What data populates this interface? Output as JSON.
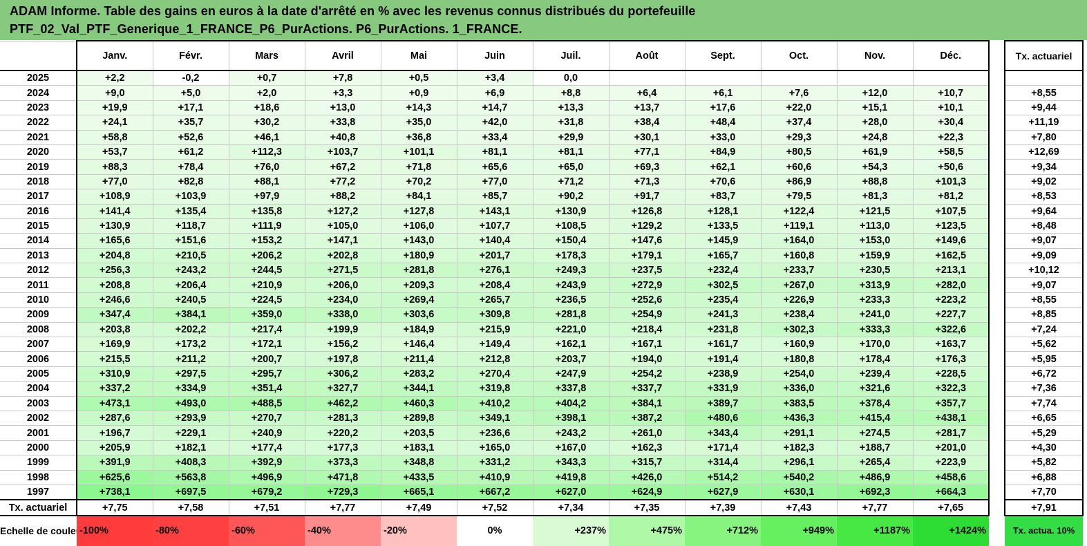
{
  "title": {
    "line1": "ADAM Informe. Table des gains en euros à la date d'arrêté en % avec les revenus connus distribués du portefeuille",
    "line2": "PTF_02_Val_PTF_Generique_1_FRANCE_P6_PurActions. P6_PurActions. 1_FRANCE."
  },
  "months": [
    "Janv.",
    "Févr.",
    "Mars",
    "Avril",
    "Mai",
    "Juin",
    "Juil.",
    "Août",
    "Sept.",
    "Oct.",
    "Nov.",
    "Déc."
  ],
  "side_header": "Tx. actuariel",
  "rows": [
    {
      "year": "2025",
      "values": [
        "+2,2",
        "-0,2",
        "+0,7",
        "+7,8",
        "+0,5",
        "+3,4",
        "0,0",
        "",
        "",
        "",
        "",
        ""
      ],
      "tx": ""
    },
    {
      "year": "2024",
      "values": [
        "+9,0",
        "+5,0",
        "+2,0",
        "+3,3",
        "+0,9",
        "+6,9",
        "+8,8",
        "+6,4",
        "+6,1",
        "+7,6",
        "+12,0",
        "+10,7"
      ],
      "tx": "+8,55"
    },
    {
      "year": "2023",
      "values": [
        "+19,9",
        "+17,1",
        "+18,6",
        "+13,0",
        "+14,3",
        "+14,7",
        "+13,3",
        "+13,7",
        "+17,6",
        "+22,0",
        "+15,1",
        "+10,1"
      ],
      "tx": "+9,44"
    },
    {
      "year": "2022",
      "values": [
        "+24,1",
        "+35,7",
        "+30,2",
        "+33,8",
        "+35,0",
        "+42,0",
        "+31,8",
        "+38,4",
        "+48,4",
        "+37,4",
        "+28,0",
        "+30,4"
      ],
      "tx": "+11,19"
    },
    {
      "year": "2021",
      "values": [
        "+58,8",
        "+52,6",
        "+46,1",
        "+40,8",
        "+36,8",
        "+33,4",
        "+29,9",
        "+30,1",
        "+33,0",
        "+29,3",
        "+24,8",
        "+22,3"
      ],
      "tx": "+7,80"
    },
    {
      "year": "2020",
      "values": [
        "+53,7",
        "+61,2",
        "+112,3",
        "+103,7",
        "+101,1",
        "+81,1",
        "+81,1",
        "+77,1",
        "+84,9",
        "+80,5",
        "+61,9",
        "+58,5"
      ],
      "tx": "+12,69"
    },
    {
      "year": "2019",
      "values": [
        "+88,3",
        "+78,4",
        "+76,0",
        "+67,2",
        "+71,8",
        "+65,6",
        "+65,0",
        "+69,3",
        "+62,1",
        "+60,6",
        "+54,3",
        "+50,6"
      ],
      "tx": "+9,34"
    },
    {
      "year": "2018",
      "values": [
        "+77,0",
        "+82,8",
        "+88,1",
        "+77,2",
        "+70,2",
        "+77,0",
        "+71,2",
        "+71,3",
        "+70,6",
        "+86,9",
        "+88,8",
        "+101,3"
      ],
      "tx": "+9,02"
    },
    {
      "year": "2017",
      "values": [
        "+108,9",
        "+103,9",
        "+97,9",
        "+88,2",
        "+84,1",
        "+85,7",
        "+90,2",
        "+91,7",
        "+83,7",
        "+79,5",
        "+81,3",
        "+81,2"
      ],
      "tx": "+8,53"
    },
    {
      "year": "2016",
      "values": [
        "+141,4",
        "+135,4",
        "+135,8",
        "+127,2",
        "+127,8",
        "+143,1",
        "+130,9",
        "+126,8",
        "+128,1",
        "+122,4",
        "+121,5",
        "+107,5"
      ],
      "tx": "+9,64"
    },
    {
      "year": "2015",
      "values": [
        "+130,9",
        "+118,7",
        "+111,9",
        "+105,0",
        "+106,0",
        "+107,7",
        "+108,5",
        "+129,2",
        "+133,5",
        "+119,1",
        "+113,0",
        "+123,5"
      ],
      "tx": "+8,48"
    },
    {
      "year": "2014",
      "values": [
        "+165,6",
        "+151,6",
        "+153,2",
        "+147,1",
        "+143,0",
        "+140,4",
        "+150,4",
        "+147,6",
        "+145,9",
        "+164,0",
        "+153,0",
        "+149,6"
      ],
      "tx": "+9,07"
    },
    {
      "year": "2013",
      "values": [
        "+204,8",
        "+210,5",
        "+206,2",
        "+202,8",
        "+180,9",
        "+201,7",
        "+178,3",
        "+179,1",
        "+165,7",
        "+160,8",
        "+159,9",
        "+162,5"
      ],
      "tx": "+9,09"
    },
    {
      "year": "2012",
      "values": [
        "+256,3",
        "+243,2",
        "+244,5",
        "+271,5",
        "+281,8",
        "+276,1",
        "+249,3",
        "+237,5",
        "+232,4",
        "+233,7",
        "+230,5",
        "+213,1"
      ],
      "tx": "+10,12"
    },
    {
      "year": "2011",
      "values": [
        "+208,8",
        "+206,4",
        "+210,9",
        "+206,0",
        "+209,3",
        "+208,4",
        "+243,9",
        "+272,9",
        "+302,5",
        "+267,0",
        "+313,9",
        "+282,0"
      ],
      "tx": "+9,07"
    },
    {
      "year": "2010",
      "values": [
        "+246,6",
        "+240,5",
        "+224,5",
        "+234,0",
        "+269,4",
        "+265,7",
        "+236,5",
        "+252,6",
        "+235,4",
        "+226,9",
        "+233,3",
        "+223,2"
      ],
      "tx": "+8,55"
    },
    {
      "year": "2009",
      "values": [
        "+347,4",
        "+384,1",
        "+359,0",
        "+338,0",
        "+303,6",
        "+309,8",
        "+281,8",
        "+254,9",
        "+241,3",
        "+238,4",
        "+241,0",
        "+227,7"
      ],
      "tx": "+8,85"
    },
    {
      "year": "2008",
      "values": [
        "+203,8",
        "+202,2",
        "+217,4",
        "+199,9",
        "+184,9",
        "+215,9",
        "+221,0",
        "+218,4",
        "+231,8",
        "+302,3",
        "+333,3",
        "+322,6"
      ],
      "tx": "+7,24"
    },
    {
      "year": "2007",
      "values": [
        "+169,9",
        "+173,2",
        "+172,1",
        "+156,2",
        "+146,4",
        "+149,4",
        "+162,1",
        "+167,1",
        "+161,7",
        "+160,9",
        "+170,0",
        "+163,7"
      ],
      "tx": "+5,62"
    },
    {
      "year": "2006",
      "values": [
        "+215,5",
        "+211,2",
        "+200,7",
        "+197,8",
        "+211,4",
        "+212,8",
        "+203,7",
        "+194,0",
        "+191,4",
        "+180,8",
        "+178,4",
        "+176,3"
      ],
      "tx": "+5,95"
    },
    {
      "year": "2005",
      "values": [
        "+310,9",
        "+297,5",
        "+295,7",
        "+306,2",
        "+283,2",
        "+270,4",
        "+247,9",
        "+254,2",
        "+238,9",
        "+254,0",
        "+239,4",
        "+228,5"
      ],
      "tx": "+6,72"
    },
    {
      "year": "2004",
      "values": [
        "+337,2",
        "+334,9",
        "+351,4",
        "+327,7",
        "+344,1",
        "+319,8",
        "+337,8",
        "+337,7",
        "+331,9",
        "+336,0",
        "+321,6",
        "+322,3"
      ],
      "tx": "+7,36"
    },
    {
      "year": "2003",
      "values": [
        "+473,1",
        "+493,0",
        "+488,5",
        "+462,2",
        "+460,3",
        "+410,2",
        "+404,2",
        "+384,1",
        "+389,7",
        "+383,5",
        "+378,4",
        "+357,7"
      ],
      "tx": "+7,74"
    },
    {
      "year": "2002",
      "values": [
        "+287,6",
        "+293,9",
        "+270,7",
        "+281,3",
        "+289,8",
        "+349,1",
        "+398,1",
        "+387,2",
        "+480,6",
        "+436,3",
        "+415,4",
        "+438,1"
      ],
      "tx": "+6,65"
    },
    {
      "year": "2001",
      "values": [
        "+196,7",
        "+229,1",
        "+240,9",
        "+220,2",
        "+203,5",
        "+236,6",
        "+243,2",
        "+261,0",
        "+343,4",
        "+291,1",
        "+274,5",
        "+281,7"
      ],
      "tx": "+5,29"
    },
    {
      "year": "2000",
      "values": [
        "+205,9",
        "+182,1",
        "+177,4",
        "+177,3",
        "+183,1",
        "+165,0",
        "+167,0",
        "+162,3",
        "+171,4",
        "+182,3",
        "+188,7",
        "+201,0"
      ],
      "tx": "+4,30"
    },
    {
      "year": "1999",
      "values": [
        "+391,9",
        "+408,3",
        "+392,9",
        "+373,3",
        "+348,8",
        "+331,2",
        "+343,3",
        "+315,7",
        "+314,4",
        "+296,1",
        "+265,4",
        "+223,9"
      ],
      "tx": "+5,82"
    },
    {
      "year": "1998",
      "values": [
        "+625,6",
        "+563,8",
        "+496,9",
        "+471,8",
        "+433,5",
        "+410,9",
        "+419,8",
        "+426,0",
        "+514,2",
        "+540,2",
        "+486,9",
        "+458,6"
      ],
      "tx": "+6,88"
    },
    {
      "year": "1997",
      "values": [
        "+738,1",
        "+697,5",
        "+679,2",
        "+729,3",
        "+665,1",
        "+667,2",
        "+627,0",
        "+624,9",
        "+627,9",
        "+630,1",
        "+692,3",
        "+664,3"
      ],
      "tx": "+7,70"
    }
  ],
  "totals": {
    "label": "Tx. actuariel",
    "values": [
      "+7,75",
      "+7,58",
      "+7,51",
      "+7,77",
      "+7,49",
      "+7,52",
      "+7,34",
      "+7,35",
      "+7,39",
      "+7,43",
      "+7,77",
      "+7,65"
    ],
    "overall": "+7,91"
  },
  "scale": {
    "label": "Echelle de couleur",
    "items": [
      {
        "text": "-100%",
        "color": "#ff3b3b",
        "align": "left"
      },
      {
        "text": "-80%",
        "color": "#ff4040",
        "align": "left"
      },
      {
        "text": "-60%",
        "color": "#ff5757",
        "align": "left"
      },
      {
        "text": "-40%",
        "color": "#ff8c8c",
        "align": "left"
      },
      {
        "text": "-20%",
        "color": "#ffc0c0",
        "align": "left"
      },
      {
        "text": "0%",
        "color": "#ffffff",
        "align": "center"
      },
      {
        "text": "+237%",
        "color": "#d8fbd4",
        "align": "right"
      },
      {
        "text": "+475%",
        "color": "#aef8a8",
        "align": "right"
      },
      {
        "text": "+712%",
        "color": "#86f47f",
        "align": "right"
      },
      {
        "text": "+949%",
        "color": "#66ef5f",
        "align": "right"
      },
      {
        "text": "+1187%",
        "color": "#48e844",
        "align": "right"
      },
      {
        "text": "+1424%",
        "color": "#2edd33",
        "align": "right"
      }
    ],
    "side_label": "Tx. actua. 10%",
    "side_color": "#33dd44"
  }
}
